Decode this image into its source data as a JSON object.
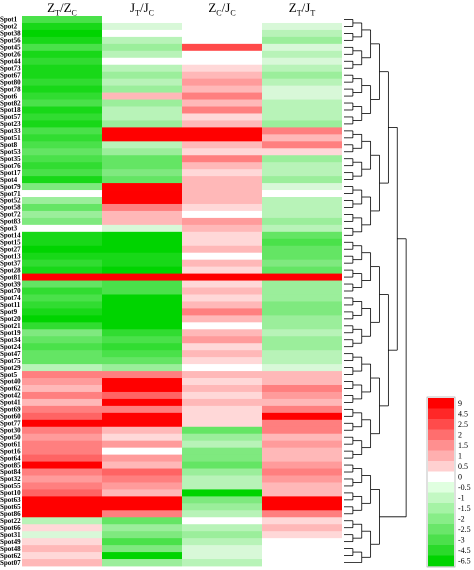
{
  "chart_data": {
    "type": "heatmap",
    "columns": [
      {
        "main": "Z",
        "sub": "T",
        "main2": "Z",
        "sub2": "C"
      },
      {
        "main": "J",
        "sub": "T",
        "main2": "J",
        "sub2": "C"
      },
      {
        "main": "Z",
        "sub": "C",
        "main2": "J",
        "sub2": "C"
      },
      {
        "main": "Z",
        "sub": "T",
        "main2": "J",
        "sub2": "T"
      }
    ],
    "rows": [
      {
        "label": "Spot1",
        "values": [
          -3,
          0,
          0,
          0
        ]
      },
      {
        "label": "Spot2",
        "values": [
          -4,
          -0.5,
          0,
          -0.5
        ]
      },
      {
        "label": "Spot38",
        "values": [
          -4.5,
          0,
          0,
          -1
        ]
      },
      {
        "label": "Spot56",
        "values": [
          -4,
          -1,
          0,
          -1.5
        ]
      },
      {
        "label": "Spot45",
        "values": [
          -3,
          -1.5,
          3,
          -0.5
        ]
      },
      {
        "label": "Spot26",
        "values": [
          -4,
          -1,
          0,
          -1
        ]
      },
      {
        "label": "Spot44",
        "values": [
          -3.5,
          0,
          0,
          -0.5
        ]
      },
      {
        "label": "Spot73",
        "values": [
          -4,
          -1,
          0.5,
          -1
        ]
      },
      {
        "label": "Spot67",
        "values": [
          -4,
          -1.5,
          1,
          -1.5
        ]
      },
      {
        "label": "Spot80",
        "values": [
          -3.5,
          -1,
          1.5,
          -1
        ]
      },
      {
        "label": "Spot78",
        "values": [
          -4,
          -1.5,
          1,
          -0.5
        ]
      },
      {
        "label": "Spot6",
        "values": [
          -3.5,
          1,
          2,
          -0.5
        ]
      },
      {
        "label": "Spot82",
        "values": [
          -3,
          -1.5,
          1,
          -1
        ]
      },
      {
        "label": "Spot18",
        "values": [
          -4,
          -1,
          2,
          -1
        ]
      },
      {
        "label": "Spot57",
        "values": [
          -3.5,
          -1,
          0.5,
          -1
        ]
      },
      {
        "label": "Spot23",
        "values": [
          -4,
          -1.5,
          1,
          -1.5
        ]
      },
      {
        "label": "Spot33",
        "values": [
          -3,
          6,
          9,
          2
        ]
      },
      {
        "label": "Spot51",
        "values": [
          -3.5,
          5,
          7,
          1
        ]
      },
      {
        "label": "Spot8",
        "values": [
          -3,
          -1,
          1,
          2
        ]
      },
      {
        "label": "Spot53",
        "values": [
          -2.5,
          -1.5,
          0.5,
          0.5
        ]
      },
      {
        "label": "Spot35",
        "values": [
          -3,
          -2.5,
          2,
          -1.5
        ]
      },
      {
        "label": "Spot76",
        "values": [
          -3.5,
          -2.5,
          1,
          -1
        ]
      },
      {
        "label": "Spot17",
        "values": [
          -3,
          -2,
          0.5,
          -1
        ]
      },
      {
        "label": "Spot4",
        "values": [
          -4,
          -2.5,
          1,
          -1.5
        ]
      },
      {
        "label": "Spot79",
        "values": [
          -2,
          4.5,
          1,
          -0.5
        ]
      },
      {
        "label": "Spot71",
        "values": [
          0,
          4.5,
          1,
          0
        ]
      },
      {
        "label": "Spot52",
        "values": [
          -1.5,
          5,
          1,
          -1
        ]
      },
      {
        "label": "Spot58",
        "values": [
          -2.5,
          2,
          0.5,
          -1
        ]
      },
      {
        "label": "Spot72",
        "values": [
          -1.5,
          1,
          0,
          -1
        ]
      },
      {
        "label": "Spot83",
        "values": [
          -2,
          1,
          1.5,
          -1.5
        ]
      },
      {
        "label": "Spot3",
        "values": [
          0,
          -0.5,
          1,
          -1
        ]
      },
      {
        "label": "Spot14",
        "values": [
          -4,
          -4.5,
          0.5,
          -2.5
        ]
      },
      {
        "label": "Spot15",
        "values": [
          -4,
          -4.5,
          0.5,
          -3
        ]
      },
      {
        "label": "Spot27",
        "values": [
          -4.5,
          -4.5,
          1,
          -2.5
        ]
      },
      {
        "label": "Spot13",
        "values": [
          -4,
          -4,
          0,
          -2.5
        ]
      },
      {
        "label": "Spot37",
        "values": [
          -3.5,
          -4,
          1,
          -2
        ]
      },
      {
        "label": "Spot28",
        "values": [
          -4,
          -4.5,
          0.5,
          -2.5
        ]
      },
      {
        "label": "Spot81",
        "values": [
          4.5,
          4.5,
          6,
          4.5
        ]
      },
      {
        "label": "Spot39",
        "values": [
          -2.5,
          -3,
          0.5,
          -1.5
        ]
      },
      {
        "label": "Spot70",
        "values": [
          -3.5,
          -3,
          1,
          -1.5
        ]
      },
      {
        "label": "Spot74",
        "values": [
          -3,
          -4.5,
          0.5,
          -1.5
        ]
      },
      {
        "label": "Spot11",
        "values": [
          -3.5,
          -6,
          1,
          -2
        ]
      },
      {
        "label": "Spot9",
        "values": [
          -4,
          -6.5,
          2,
          -2
        ]
      },
      {
        "label": "Spot20",
        "values": [
          -4.5,
          -6.5,
          1,
          -1.5
        ]
      },
      {
        "label": "Spot21",
        "values": [
          -3.5,
          -5,
          0,
          -1.5
        ]
      },
      {
        "label": "Spot19",
        "values": [
          -2,
          -3.5,
          1,
          -1
        ]
      },
      {
        "label": "Spot34",
        "values": [
          -2.5,
          -3,
          1.5,
          -1.5
        ]
      },
      {
        "label": "Spot24",
        "values": [
          -3,
          -3.5,
          0.5,
          -1.5
        ]
      },
      {
        "label": "Spot47",
        "values": [
          -2.5,
          -3,
          1,
          -1
        ]
      },
      {
        "label": "Spot75",
        "values": [
          -2.5,
          -2.5,
          0.5,
          -1
        ]
      },
      {
        "label": "Spot29",
        "values": [
          -1,
          -1.5,
          0,
          -0.5
        ]
      },
      {
        "label": "Spot5",
        "values": [
          2,
          2,
          1,
          1
        ]
      },
      {
        "label": "Spot40",
        "values": [
          1.5,
          4.5,
          0.5,
          1
        ]
      },
      {
        "label": "Spot62",
        "values": [
          1,
          4.5,
          1,
          2
        ]
      },
      {
        "label": "Spot42",
        "values": [
          2,
          2.5,
          0.5,
          1.5
        ]
      },
      {
        "label": "Spot41",
        "values": [
          1,
          4.5,
          1,
          1
        ]
      },
      {
        "label": "Spot69",
        "values": [
          2,
          2,
          0.5,
          2
        ]
      },
      {
        "label": "Spot60",
        "values": [
          2.5,
          4.5,
          0.5,
          4.5
        ]
      },
      {
        "label": "Spot77",
        "values": [
          4.5,
          4.5,
          0.5,
          2
        ]
      },
      {
        "label": "Spot30",
        "values": [
          2,
          1,
          -2.5,
          2
        ]
      },
      {
        "label": "Spot50",
        "values": [
          1.5,
          0.5,
          -1.5,
          1
        ]
      },
      {
        "label": "Spot61",
        "values": [
          2,
          1.5,
          -1,
          1.5
        ]
      },
      {
        "label": "Spot16",
        "values": [
          2,
          0,
          -2,
          1
        ]
      },
      {
        "label": "Spot64",
        "values": [
          2.5,
          1.5,
          -2,
          1
        ]
      },
      {
        "label": "Spot85",
        "values": [
          4.5,
          1,
          -2.5,
          1.5
        ]
      },
      {
        "label": "Spot84",
        "values": [
          2,
          2.5,
          -1.5,
          2
        ]
      },
      {
        "label": "Spot32",
        "values": [
          1.5,
          2,
          -1,
          1.5
        ]
      },
      {
        "label": "Spot55",
        "values": [
          2,
          1.5,
          -1,
          1
        ]
      },
      {
        "label": "Spot10",
        "values": [
          2.5,
          1,
          -4.5,
          1
        ]
      },
      {
        "label": "Spot63",
        "values": [
          6,
          4.5,
          -2,
          4.5
        ]
      },
      {
        "label": "Spot65",
        "values": [
          6,
          4.5,
          -1.5,
          4.5
        ]
      },
      {
        "label": "Spot86",
        "values": [
          4.5,
          2,
          -1,
          2
        ]
      },
      {
        "label": "Spot22",
        "values": [
          -1,
          -2.5,
          0,
          0.5
        ]
      },
      {
        "label": "Spot66",
        "values": [
          0.5,
          -1.5,
          -1,
          1
        ]
      },
      {
        "label": "Spot31",
        "values": [
          -0.5,
          -2,
          -1.5,
          0.5
        ]
      },
      {
        "label": "Spot49",
        "values": [
          0.5,
          -3,
          -1,
          0
        ]
      },
      {
        "label": "Spot48",
        "values": [
          1,
          -2,
          -0.5,
          0
        ]
      },
      {
        "label": "Spot62",
        "values": [
          0.5,
          -4.5,
          -0.5,
          0
        ]
      },
      {
        "label": "Spot07",
        "values": [
          1,
          -1.5,
          -1,
          0
        ]
      }
    ],
    "legend": {
      "ticks": [
        "9",
        "4.5",
        "2.5",
        "2",
        "1.5",
        "1",
        "0.5",
        "0",
        "-0.5",
        "-1",
        "-1.5",
        "-2",
        "-2.5",
        "-3",
        "-4.5",
        "-6.5"
      ],
      "colors": [
        "#ff0000",
        "#ff2727",
        "#ff4b4b",
        "#ff6e6e",
        "#ff8f8f",
        "#ffafaf",
        "#ffd0d0",
        "#ffffff",
        "#e0ffe0",
        "#c3f8c3",
        "#a5f3a5",
        "#88ed88",
        "#6ae66a",
        "#4ce04c",
        "#2ada2a",
        "#00d400"
      ]
    },
    "color_scale": {
      "max": 9,
      "min": -6.5,
      "max_color": "#ff0000",
      "mid_color": "#ffffff",
      "min_color": "#00d400"
    }
  }
}
